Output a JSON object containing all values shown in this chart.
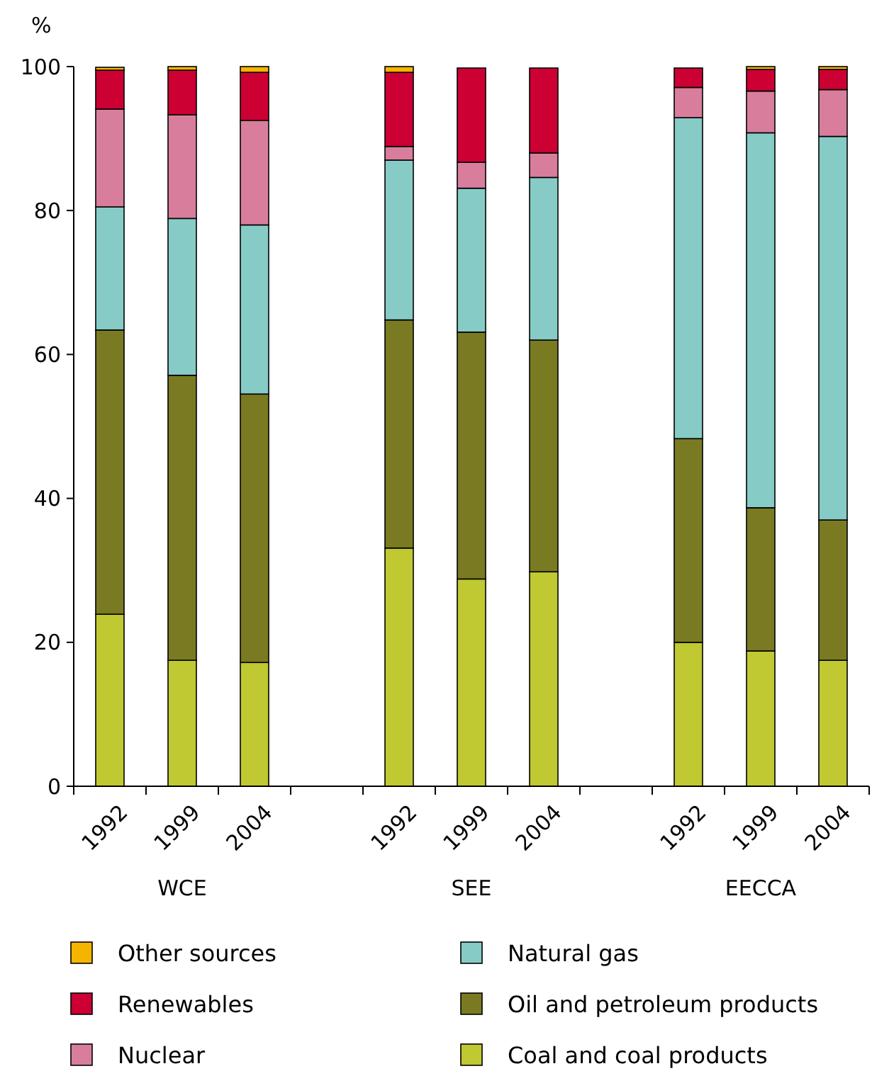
{
  "chart_data": {
    "type": "bar",
    "stacked": true,
    "ylabel": "%",
    "categories": [
      "1992",
      "1999",
      "2004",
      null,
      "1992",
      "1999",
      "2004",
      null,
      "1992",
      "1999",
      "2004"
    ],
    "series": [
      {
        "name": "Coal and coal products",
        "color": "#c0c832",
        "values": [
          23.9,
          17.5,
          17.2,
          null,
          33.1,
          28.8,
          29.8,
          null,
          20.0,
          18.8,
          17.5
        ]
      },
      {
        "name": "Oil and petroleum products",
        "color": "#7a7a22",
        "values": [
          39.5,
          39.6,
          37.3,
          null,
          31.7,
          34.3,
          32.2,
          null,
          28.3,
          19.9,
          19.5
        ]
      },
      {
        "name": "Natural gas",
        "color": "#86cbc6",
        "values": [
          17.1,
          21.8,
          23.5,
          null,
          22.2,
          20.0,
          22.6,
          null,
          44.6,
          52.1,
          53.3
        ]
      },
      {
        "name": "Nuclear",
        "color": "#d87e9c",
        "values": [
          13.6,
          14.4,
          14.5,
          null,
          1.9,
          3.6,
          3.4,
          null,
          4.2,
          5.8,
          6.5
        ]
      },
      {
        "name": "Renewables",
        "color": "#cc0033",
        "values": [
          5.4,
          6.2,
          6.7,
          null,
          10.3,
          13.1,
          11.8,
          null,
          2.7,
          3.0,
          2.8
        ]
      },
      {
        "name": "Other sources",
        "color": "#f5b400",
        "values": [
          0.4,
          0.5,
          0.8,
          null,
          0.8,
          null,
          0,
          null,
          null,
          0.4,
          0.4
        ]
      }
    ],
    "ylim": [
      0,
      100
    ],
    "yticks": [
      0,
      20,
      40,
      60,
      80,
      100
    ],
    "grid": false,
    "legend": "bottom",
    "annotations": [
      "WCE",
      "SEE",
      "EECCA"
    ]
  }
}
